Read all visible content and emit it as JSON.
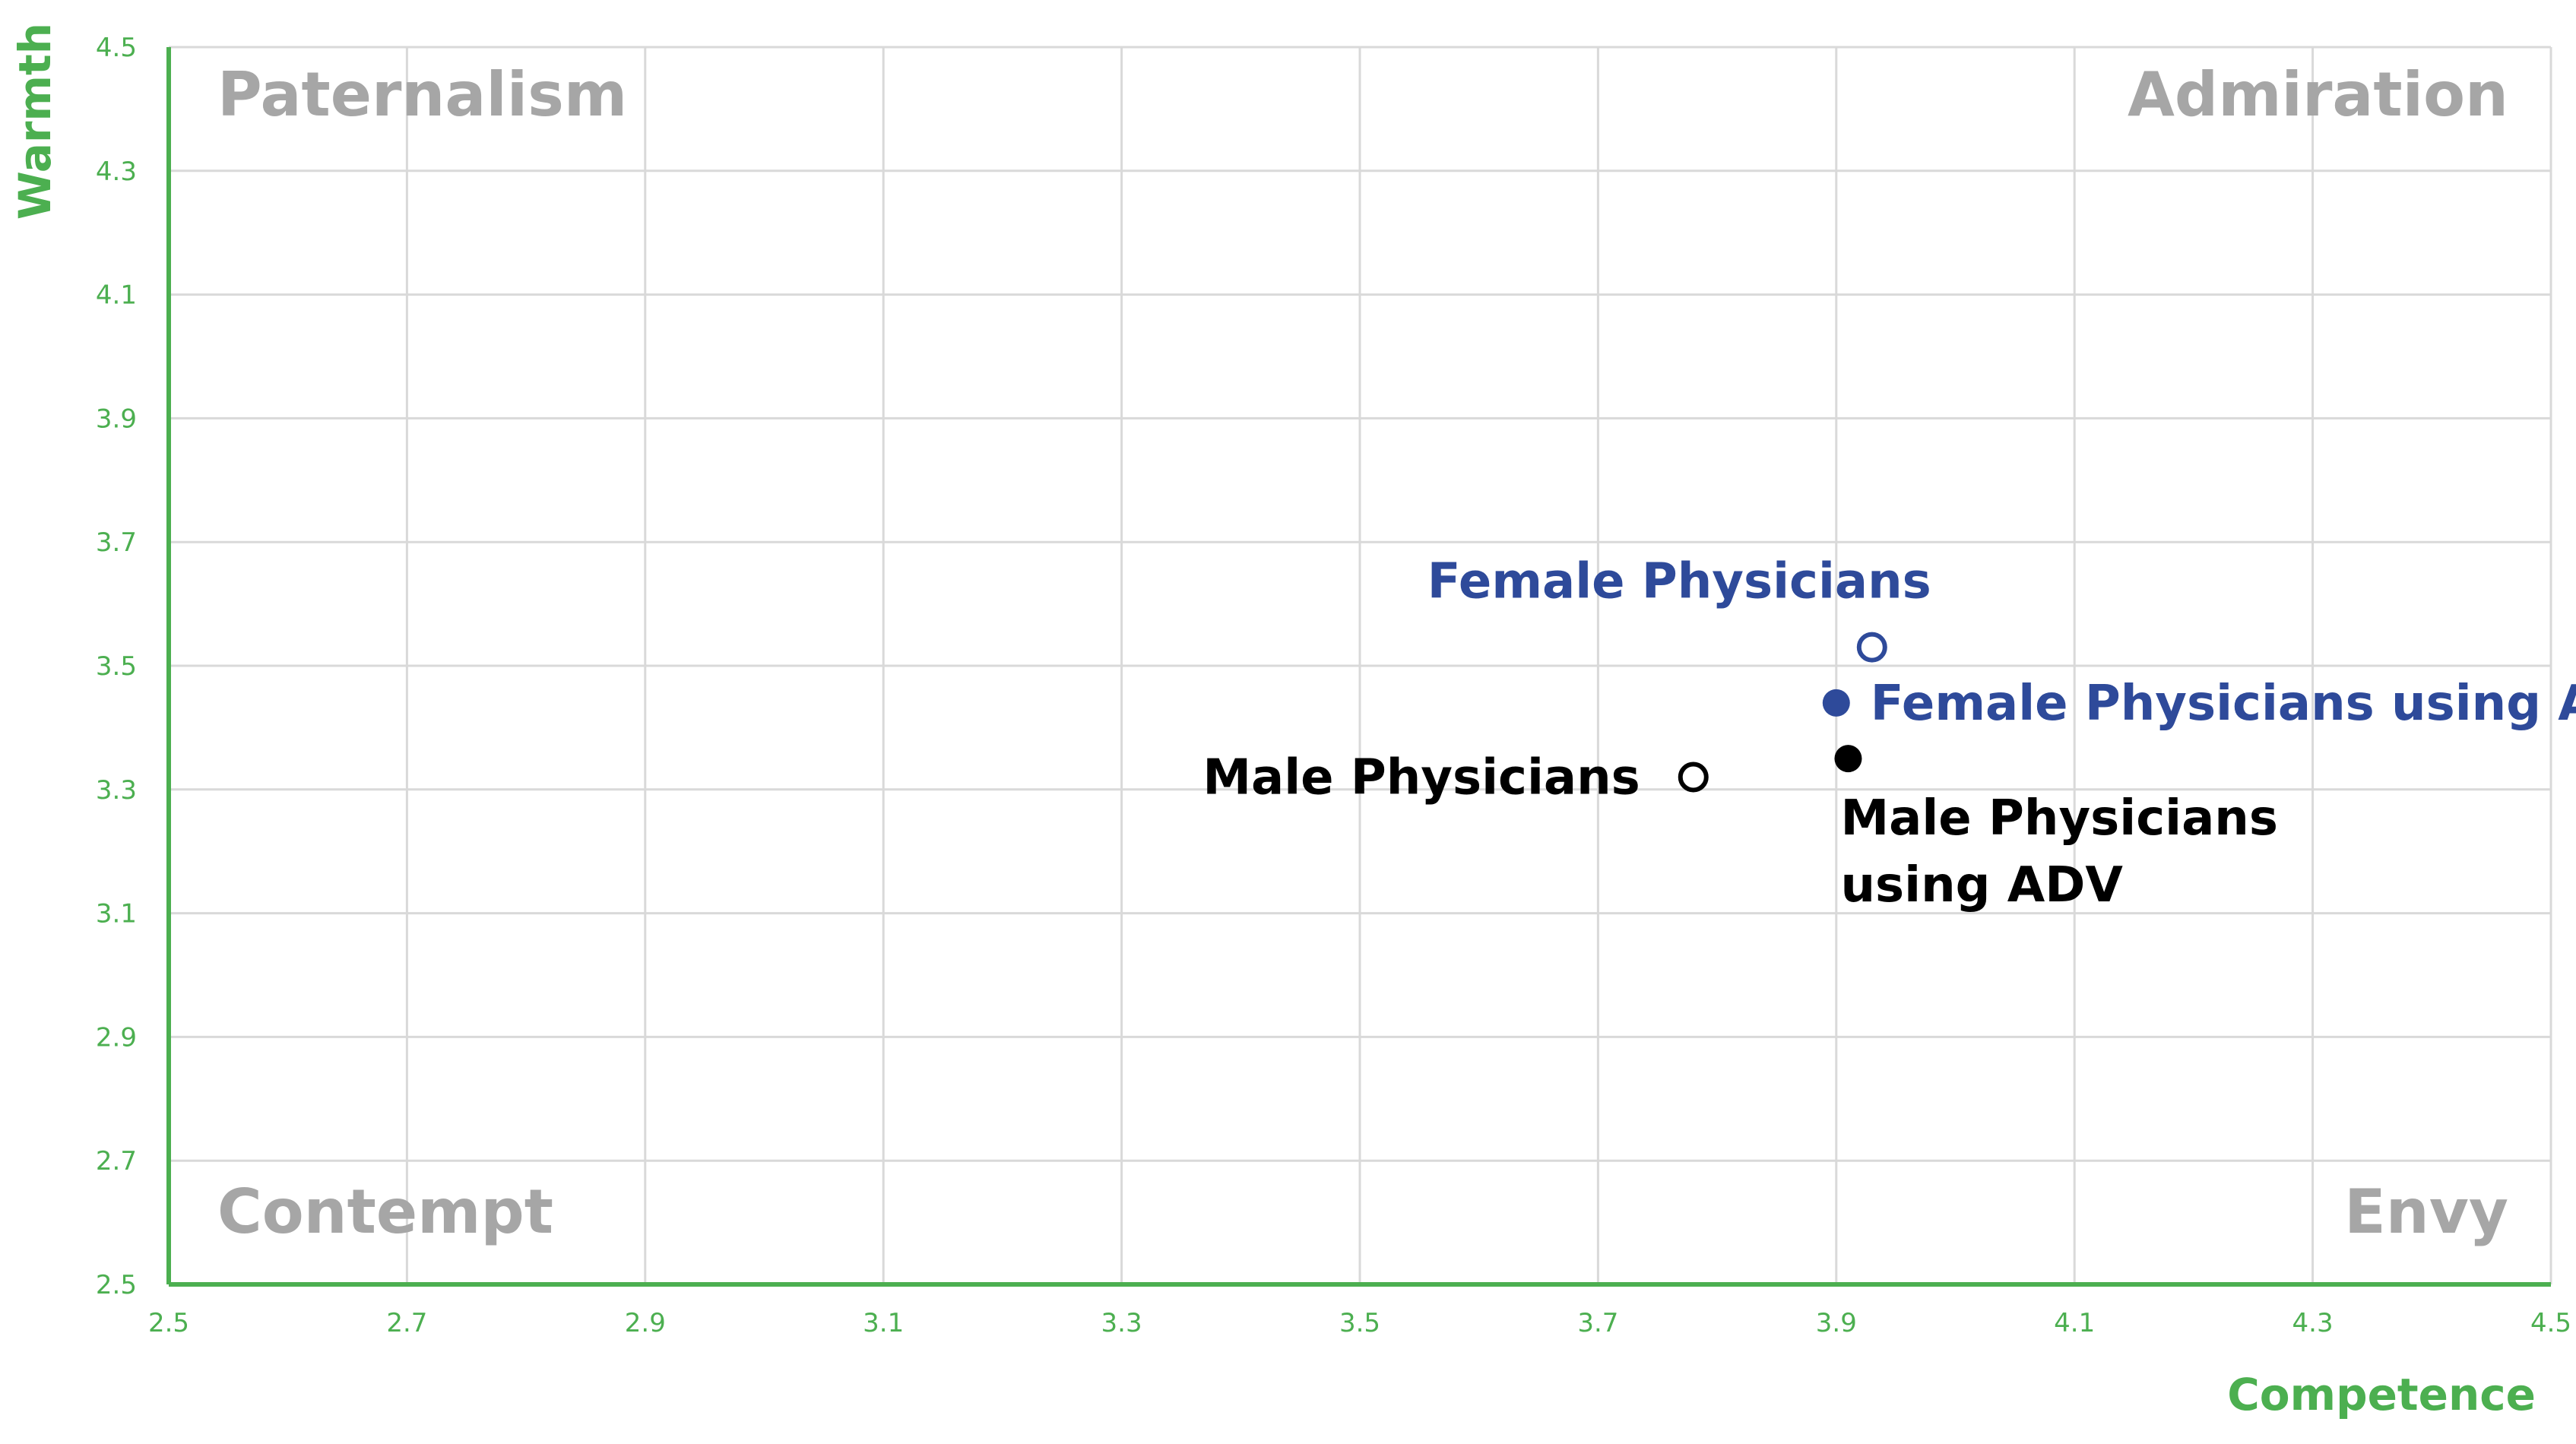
{
  "chart_data": {
    "type": "scatter",
    "xlabel": "Competence",
    "ylabel": "Warmth",
    "xlim": [
      2.5,
      4.5
    ],
    "ylim": [
      2.5,
      4.5
    ],
    "x_ticks": [
      "2.5",
      "2.7",
      "2.9",
      "3.1",
      "3.3",
      "3.5",
      "3.7",
      "3.9",
      "4.1",
      "4.3",
      "4.5"
    ],
    "y_ticks": [
      "2.5",
      "2.7",
      "2.9",
      "3.1",
      "3.3",
      "3.5",
      "3.7",
      "3.9",
      "4.1",
      "4.3",
      "4.5"
    ],
    "grid": true,
    "quadrants": {
      "top_left": "Paternalism",
      "top_right": "Admiration",
      "bottom_left": "Contempt",
      "bottom_right": "Envy"
    },
    "points": [
      {
        "label": "Female Physicians",
        "x": 3.93,
        "y": 3.53,
        "marker": "hollow",
        "color": "#2e4a9a"
      },
      {
        "label": "Female Physicians using ADV",
        "x": 3.9,
        "y": 3.44,
        "marker": "filled",
        "color": "#2e4a9a"
      },
      {
        "label": "Male Physicians",
        "x": 3.78,
        "y": 3.32,
        "marker": "hollow",
        "color": "#000000"
      },
      {
        "label_lines": [
          "Male Physicians",
          "using ADV"
        ],
        "x": 3.91,
        "y": 3.35,
        "marker": "filled",
        "color": "#000000"
      }
    ],
    "colors": {
      "axis": "#4caf50",
      "grid": "#d9d9d9",
      "quadrant_text": "#a6a6a6"
    }
  }
}
